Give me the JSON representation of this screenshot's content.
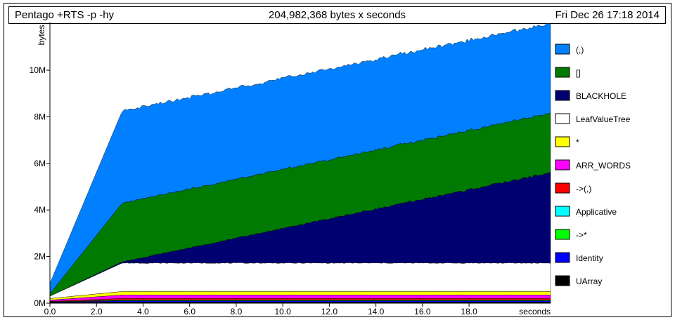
{
  "header": {
    "program": "Pentago +RTS -p -hy",
    "total": "204,982,368 bytes x seconds",
    "date": "Fri Dec 26 17:18 2014"
  },
  "chart_data": {
    "type": "area",
    "stacked": true,
    "ylabel": "bytes",
    "xlabel": "seconds",
    "xlim": [
      0,
      21.5
    ],
    "ylim": [
      0,
      11.9
    ],
    "x_ticks": [
      0,
      2,
      4,
      6,
      8,
      10,
      12,
      14,
      16,
      18
    ],
    "x_tick_labels": [
      "0.0",
      "2.0",
      "4.0",
      "6.0",
      "8.0",
      "10.0",
      "12.0",
      "14.0",
      "16.0",
      "18.0"
    ],
    "y_ticks": [
      0,
      2,
      4,
      6,
      8,
      10
    ],
    "y_tick_labels": [
      "0M",
      "2M",
      "4M",
      "6M",
      "8M",
      "10M"
    ],
    "legend_position": "right",
    "x": [
      0,
      3.1,
      21.5
    ],
    "series": [
      {
        "name": "UArray",
        "color": "#000000",
        "values": [
          0.02,
          0.05,
          0.05
        ]
      },
      {
        "name": "Identity",
        "color": "#0000ff",
        "values": [
          0.02,
          0.05,
          0.05
        ]
      },
      {
        "name": "->*",
        "color": "#00ff00",
        "values": [
          0.01,
          0.02,
          0.02
        ]
      },
      {
        "name": "Applicative",
        "color": "#00ffff",
        "values": [
          0.01,
          0.02,
          0.02
        ]
      },
      {
        "name": "->(,)",
        "color": "#ff0000",
        "values": [
          0.02,
          0.06,
          0.06
        ]
      },
      {
        "name": "ARR_WORDS",
        "color": "#ff00ff",
        "values": [
          0.05,
          0.15,
          0.15
        ]
      },
      {
        "name": "*",
        "color": "#ffff00",
        "values": [
          0.07,
          0.15,
          0.15
        ]
      },
      {
        "name": "LeafValueTree",
        "color": "#ffffff",
        "values": [
          0.1,
          1.22,
          1.22
        ]
      },
      {
        "name": "BLACKHOLE",
        "color": "#000070",
        "values": [
          0.0,
          0.05,
          3.88
        ]
      },
      {
        "name": "[]",
        "color": "#007a00",
        "values": [
          0.1,
          2.52,
          2.55
        ]
      },
      {
        "name": "(,)",
        "color": "#0080ff",
        "values": [
          0.45,
          3.95,
          3.85
        ]
      }
    ]
  }
}
